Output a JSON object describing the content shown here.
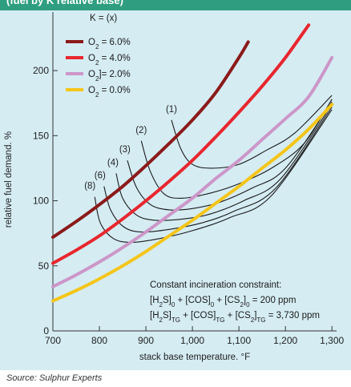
{
  "header": {
    "text": "(fuel   by  K  relative  base)"
  },
  "source": "Source: Sulphur Experts",
  "chart_data": {
    "type": "line",
    "xlabel": "stack base temperature. °F",
    "ylabel": "relative fuel demand. %",
    "xlim": [
      700,
      1310
    ],
    "ylim": [
      0,
      245
    ],
    "xticks": [
      700,
      800,
      900,
      1000,
      1100,
      1200,
      1300
    ],
    "xtick_labels": [
      "700",
      "800",
      "900",
      "1,000",
      "1,100",
      "1,200",
      "1,300"
    ],
    "yticks": [
      0,
      50,
      100,
      150,
      200
    ],
    "ytick_labels": [
      "0",
      "50",
      "100",
      "150",
      "200"
    ],
    "legend": {
      "title": "K = (x)",
      "placement": "top-left",
      "entries": [
        {
          "prefix": "O",
          "sub": "2",
          "suffix": " = 6.0%"
        },
        {
          "prefix": "O",
          "sub": "2",
          "suffix": " = 4.0%"
        },
        {
          "prefix": "O",
          "sub": "2",
          "suffix": "]= 2.0%"
        },
        {
          "prefix": "O",
          "sub": "2",
          "suffix": " = 0.0%"
        }
      ]
    },
    "series": [
      {
        "color": "#8b1a1a",
        "points": [
          [
            700,
            72
          ],
          [
            750,
            84
          ],
          [
            800,
            97
          ],
          [
            850,
            111
          ],
          [
            900,
            127
          ],
          [
            950,
            144
          ],
          [
            1000,
            162
          ],
          [
            1050,
            183
          ],
          [
            1100,
            210
          ],
          [
            1120,
            222
          ]
        ]
      },
      {
        "color": "#e8262e",
        "points": [
          [
            700,
            52
          ],
          [
            750,
            62
          ],
          [
            800,
            73
          ],
          [
            850,
            86
          ],
          [
            900,
            100
          ],
          [
            950,
            115
          ],
          [
            1000,
            131
          ],
          [
            1050,
            149
          ],
          [
            1100,
            168
          ],
          [
            1150,
            188
          ],
          [
            1200,
            210
          ],
          [
            1250,
            235
          ]
        ]
      },
      {
        "color": "#cc96c8",
        "points": [
          [
            700,
            34
          ],
          [
            750,
            43
          ],
          [
            800,
            53
          ],
          [
            850,
            64
          ],
          [
            900,
            76
          ],
          [
            950,
            89
          ],
          [
            1000,
            102
          ],
          [
            1050,
            117
          ],
          [
            1100,
            131
          ],
          [
            1150,
            147
          ],
          [
            1200,
            163
          ],
          [
            1250,
            180
          ],
          [
            1300,
            210
          ]
        ]
      },
      {
        "color": "#f5c518",
        "points": [
          [
            700,
            23
          ],
          [
            750,
            31
          ],
          [
            800,
            40
          ],
          [
            850,
            50
          ],
          [
            900,
            61
          ],
          [
            950,
            73
          ],
          [
            1000,
            85
          ],
          [
            1050,
            98
          ],
          [
            1100,
            111
          ],
          [
            1150,
            125
          ],
          [
            1200,
            139
          ],
          [
            1250,
            155
          ],
          [
            1300,
            174
          ]
        ]
      }
    ],
    "k_curves": [
      {
        "label": "(1)",
        "points": [
          [
            955,
            162
          ],
          [
            975,
            140
          ],
          [
            1000,
            128
          ],
          [
            1040,
            125
          ],
          [
            1100,
            128
          ],
          [
            1160,
            139
          ],
          [
            1220,
            152
          ],
          [
            1300,
            181
          ]
        ]
      },
      {
        "label": "(2)",
        "points": [
          [
            890,
            146
          ],
          [
            910,
            122
          ],
          [
            940,
            105
          ],
          [
            980,
            102
          ],
          [
            1040,
            106
          ],
          [
            1100,
            113
          ],
          [
            1170,
            125
          ],
          [
            1240,
            144
          ],
          [
            1300,
            178
          ]
        ]
      },
      {
        "label": "(3)",
        "points": [
          [
            860,
            131
          ],
          [
            880,
            110
          ],
          [
            910,
            97
          ],
          [
            950,
            93
          ],
          [
            1000,
            94
          ],
          [
            1060,
            99
          ],
          [
            1130,
            110
          ],
          [
            1200,
            125
          ],
          [
            1300,
            176
          ]
        ]
      },
      {
        "label": "(4)",
        "points": [
          [
            836,
            121
          ],
          [
            850,
            102
          ],
          [
            880,
            89
          ],
          [
            920,
            85
          ],
          [
            980,
            86
          ],
          [
            1040,
            90
          ],
          [
            1110,
            100
          ],
          [
            1190,
            117
          ],
          [
            1300,
            174
          ]
        ]
      },
      {
        "label": "(6)",
        "points": [
          [
            810,
            111
          ],
          [
            824,
            93
          ],
          [
            852,
            80
          ],
          [
            890,
            76
          ],
          [
            950,
            78
          ],
          [
            1020,
            83
          ],
          [
            1090,
            92
          ],
          [
            1180,
            110
          ],
          [
            1300,
            172
          ]
        ]
      },
      {
        "label": "(8)",
        "points": [
          [
            790,
            103
          ],
          [
            802,
            83
          ],
          [
            830,
            71
          ],
          [
            870,
            68
          ],
          [
            930,
            71
          ],
          [
            1000,
            77
          ],
          [
            1080,
            87
          ],
          [
            1170,
            104
          ],
          [
            1300,
            170
          ]
        ]
      }
    ],
    "annotation": {
      "line1": "Constant incineration constraint:",
      "line2": [
        {
          "t": "[H"
        },
        {
          "t": "2",
          "sub": true
        },
        {
          "t": "S]"
        },
        {
          "t": "0",
          "sub": true
        },
        {
          "t": " + [COS]"
        },
        {
          "t": "0",
          "sub": true
        },
        {
          "t": " + [CS"
        },
        {
          "t": "2",
          "sub": true
        },
        {
          "t": "]"
        },
        {
          "t": "0",
          "sub": true
        },
        {
          "t": " = 200 ppm"
        }
      ],
      "line3": [
        {
          "t": "[H"
        },
        {
          "t": "2",
          "sub": true
        },
        {
          "t": "S]"
        },
        {
          "t": "TG",
          "sub": true
        },
        {
          "t": " + [COS]"
        },
        {
          "t": "TG",
          "sub": true
        },
        {
          "t": " + [CS"
        },
        {
          "t": "2",
          "sub": true
        },
        {
          "t": "]"
        },
        {
          "t": "TG",
          "sub": true
        },
        {
          "t": " = 3,730 ppm"
        }
      ]
    }
  }
}
